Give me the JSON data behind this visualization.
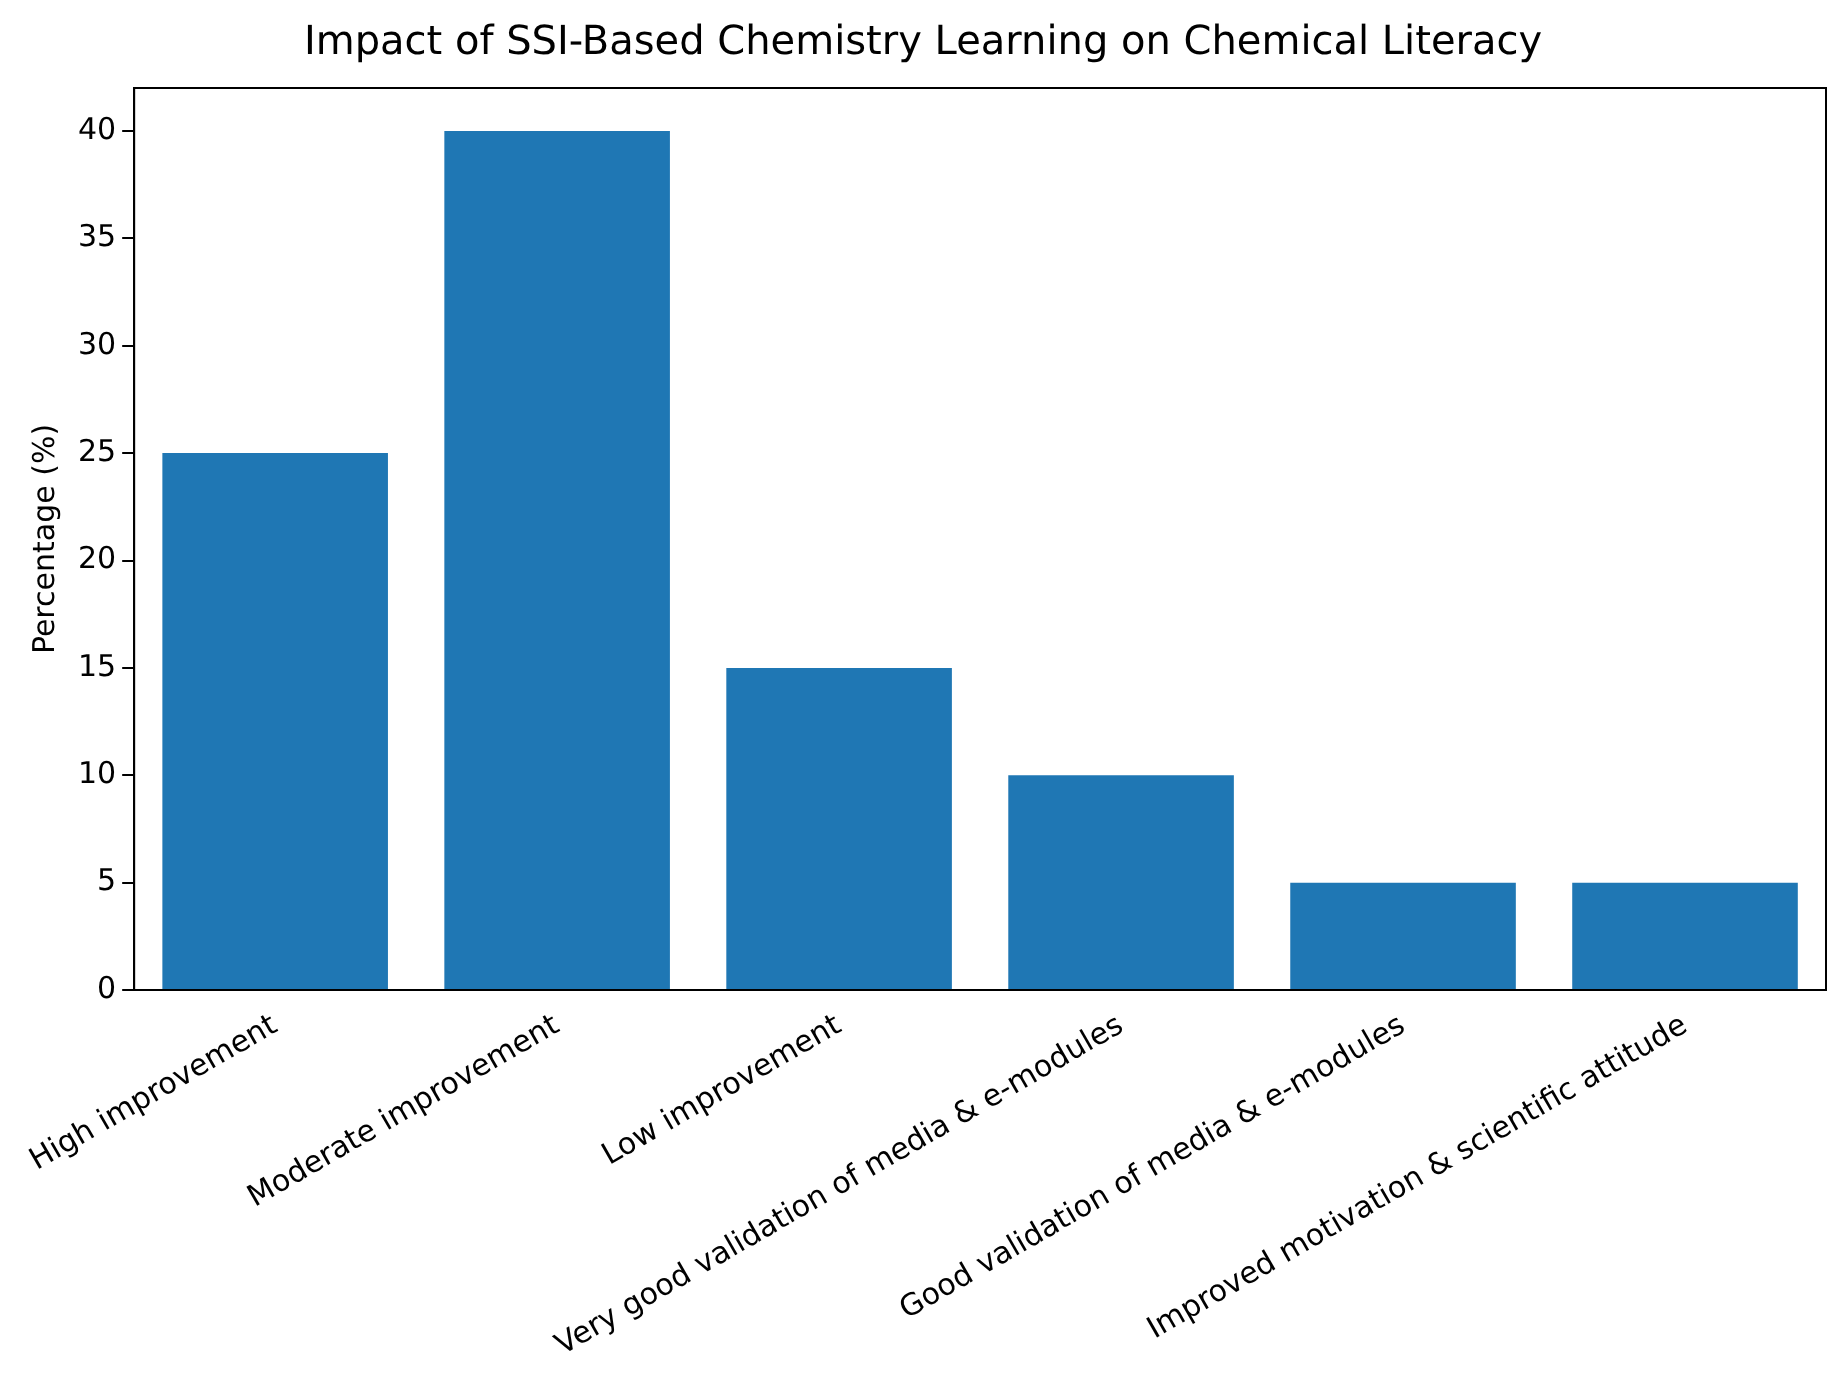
{
  "chart_data": {
    "type": "bar",
    "title": "Impact of SSI-Based Chemistry Learning on Chemical Literacy",
    "ylabel": "Percentage (%)",
    "categories": [
      "High improvement",
      "Moderate improvement",
      "Low improvement",
      "Very good validation of media & e-modules",
      "Good validation of media & e-modules",
      "Improved motivation & scientific attitude"
    ],
    "values": [
      25,
      40,
      15,
      10,
      5,
      5
    ],
    "color": "#1f77b4",
    "ylim": [
      0,
      42
    ],
    "yticks": [
      0,
      5,
      10,
      15,
      20,
      25,
      30,
      35,
      40
    ],
    "grid": false,
    "legend": false
  }
}
